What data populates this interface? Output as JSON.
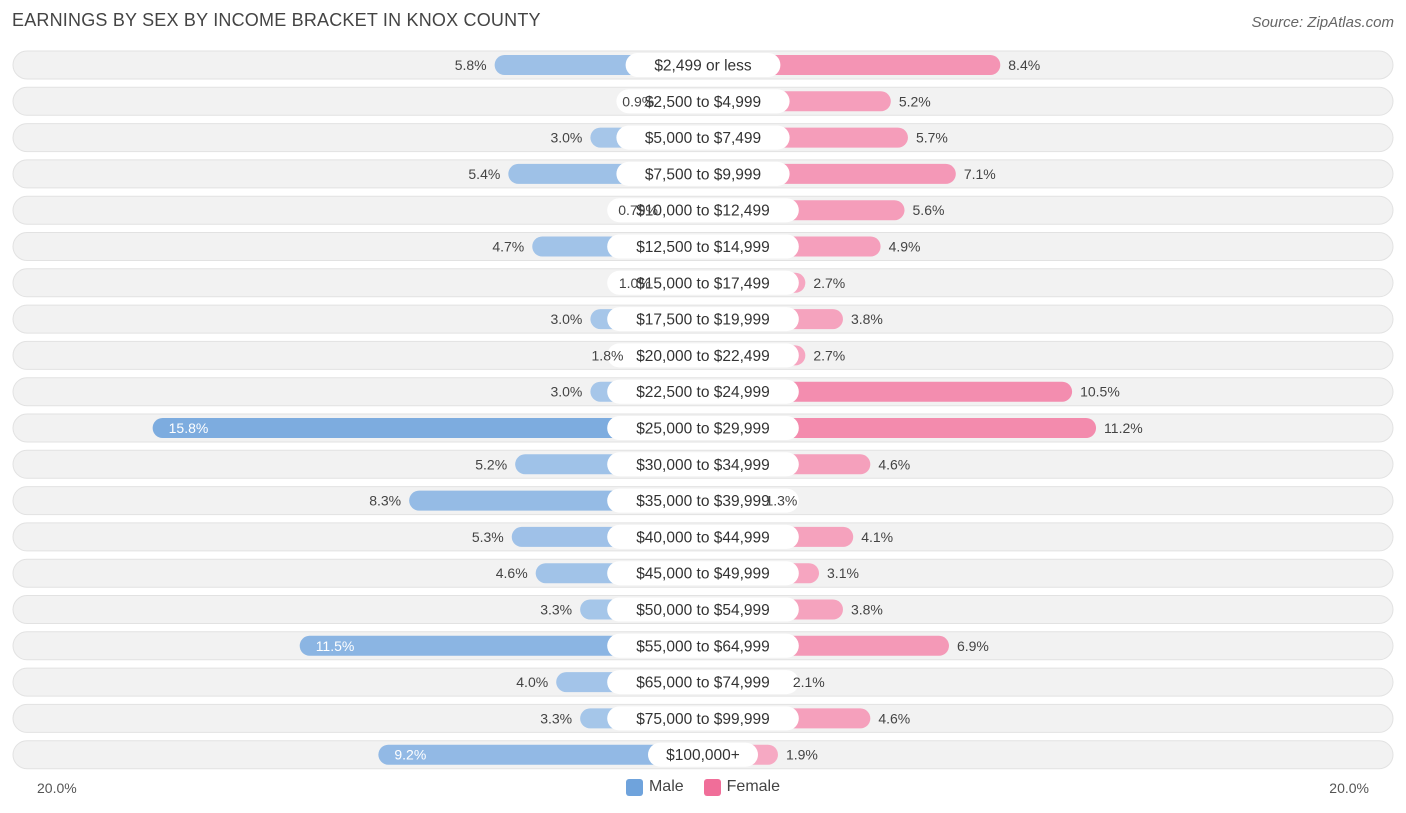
{
  "chart_data": {
    "type": "bar",
    "orientation": "horizontal-diverging",
    "title": "EARNINGS BY SEX BY INCOME BRACKET IN KNOX COUNTY",
    "source": "Source: ZipAtlas.com",
    "axis_min_label": "20.0%",
    "axis_max_label": "20.0%",
    "xlim": [
      -20,
      20
    ],
    "categories": [
      "$2,499 or less",
      "$2,500 to $4,999",
      "$5,000 to $7,499",
      "$7,500 to $9,999",
      "$10,000 to $12,499",
      "$12,500 to $14,999",
      "$15,000 to $17,499",
      "$17,500 to $19,999",
      "$20,000 to $22,499",
      "$22,500 to $24,999",
      "$25,000 to $29,999",
      "$30,000 to $34,999",
      "$35,000 to $39,999",
      "$40,000 to $44,999",
      "$45,000 to $49,999",
      "$50,000 to $54,999",
      "$55,000 to $64,999",
      "$65,000 to $74,999",
      "$75,000 to $99,999",
      "$100,000+"
    ],
    "series": [
      {
        "name": "Male",
        "color": "#6fa3dc",
        "values": [
          5.8,
          0.9,
          3.0,
          5.4,
          0.79,
          4.7,
          1.0,
          3.0,
          1.8,
          3.0,
          15.8,
          5.2,
          8.3,
          5.3,
          4.6,
          3.3,
          11.5,
          4.0,
          3.3,
          9.2
        ],
        "labels": [
          "5.8%",
          "0.9%",
          "3.0%",
          "5.4%",
          "0.79%",
          "4.7%",
          "1.0%",
          "3.0%",
          "1.8%",
          "3.0%",
          "15.8%",
          "5.2%",
          "8.3%",
          "5.3%",
          "4.6%",
          "3.3%",
          "11.5%",
          "4.0%",
          "3.3%",
          "9.2%"
        ]
      },
      {
        "name": "Female",
        "color": "#f06e99",
        "values": [
          8.4,
          5.2,
          5.7,
          7.1,
          5.6,
          4.9,
          2.7,
          3.8,
          2.7,
          10.5,
          11.2,
          4.6,
          1.3,
          4.1,
          3.1,
          3.8,
          6.9,
          2.1,
          4.6,
          1.9
        ],
        "labels": [
          "8.4%",
          "5.2%",
          "5.7%",
          "7.1%",
          "5.6%",
          "4.9%",
          "2.7%",
          "3.8%",
          "2.7%",
          "10.5%",
          "11.2%",
          "4.6%",
          "1.3%",
          "4.1%",
          "3.1%",
          "3.8%",
          "6.9%",
          "2.1%",
          "4.6%",
          "1.9%"
        ]
      }
    ],
    "legend": [
      "Male",
      "Female"
    ],
    "legend_position": "bottom-center"
  }
}
